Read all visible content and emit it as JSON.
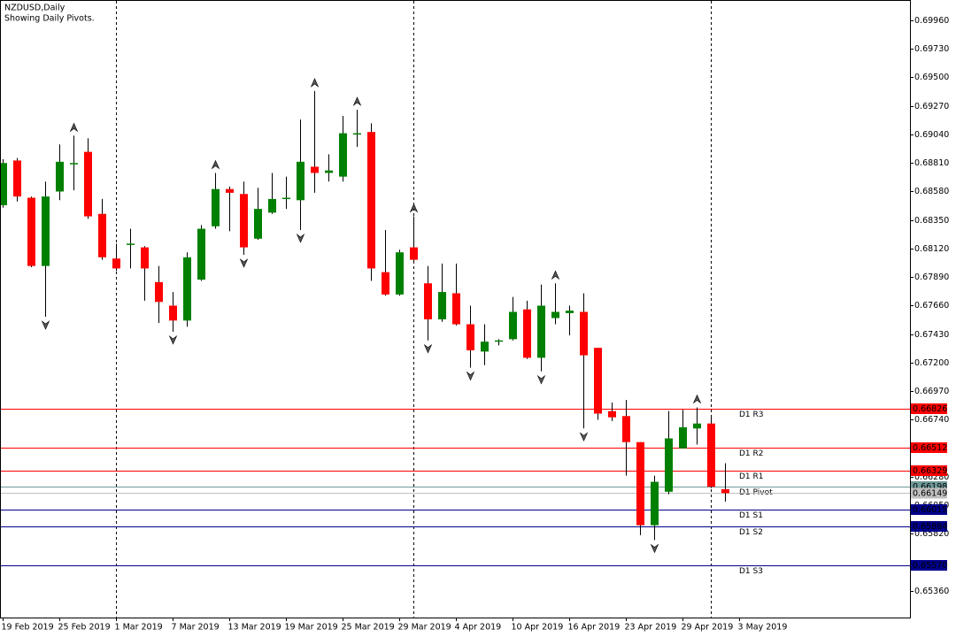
{
  "chart_data": {
    "type": "candlestick",
    "title": "NZDUSD,Daily",
    "subtitle": "Showing Daily Pivots.",
    "up_color": "#008000",
    "down_color": "#ff0000",
    "wick_color": "#000000",
    "ylim": [
      0.65146,
      0.70124
    ],
    "yticks": [
      {
        "value": 0.6996,
        "label": "0.69960"
      },
      {
        "value": 0.6973,
        "label": "0.69730"
      },
      {
        "value": 0.695,
        "label": "0.69500"
      },
      {
        "value": 0.6927,
        "label": "0.69270"
      },
      {
        "value": 0.6904,
        "label": "0.69040"
      },
      {
        "value": 0.6881,
        "label": "0.68810"
      },
      {
        "value": 0.6858,
        "label": "0.68580"
      },
      {
        "value": 0.6835,
        "label": "0.68350"
      },
      {
        "value": 0.6812,
        "label": "0.68120"
      },
      {
        "value": 0.6789,
        "label": "0.67890"
      },
      {
        "value": 0.6766,
        "label": "0.67660"
      },
      {
        "value": 0.6743,
        "label": "0.67430"
      },
      {
        "value": 0.672,
        "label": "0.67200"
      },
      {
        "value": 0.6697,
        "label": "0.66970"
      },
      {
        "value": 0.6674,
        "label": "0.66740"
      },
      {
        "value": 0.6628,
        "label": "0.66280"
      },
      {
        "value": 0.6605,
        "label": "0.66050"
      },
      {
        "value": 0.6582,
        "label": "0.65820"
      },
      {
        "value": 0.6536,
        "label": "0.65360"
      }
    ],
    "xticks": [
      {
        "value": 0,
        "label": "19 Feb 2019"
      },
      {
        "value": 4,
        "label": "25 Feb 2019"
      },
      {
        "value": 8,
        "label": "1 Mar 2019"
      },
      {
        "value": 12,
        "label": "7 Mar 2019"
      },
      {
        "value": 16,
        "label": "13 Mar 2019"
      },
      {
        "value": 20,
        "label": "19 Mar 2019"
      },
      {
        "value": 24,
        "label": "25 Mar 2019"
      },
      {
        "value": 28,
        "label": "29 Mar 2019"
      },
      {
        "value": 32,
        "label": "4 Apr 2019"
      },
      {
        "value": 36,
        "label": "10 Apr 2019"
      },
      {
        "value": 40,
        "label": "16 Apr 2019"
      },
      {
        "value": 44,
        "label": "23 Apr 2019"
      },
      {
        "value": 48,
        "label": "29 Apr 2019"
      },
      {
        "value": 52,
        "label": "3 May 2019"
      }
    ],
    "candles": [
      {
        "o": 0.6847,
        "h": 0.6884,
        "l": 0.6845,
        "c": 0.6881
      },
      {
        "o": 0.6883,
        "h": 0.6885,
        "l": 0.685,
        "c": 0.6854
      },
      {
        "o": 0.6853,
        "h": 0.6854,
        "l": 0.6797,
        "c": 0.6798
      },
      {
        "o": 0.6798,
        "h": 0.6866,
        "l": 0.6757,
        "c": 0.6854,
        "fractal": "down"
      },
      {
        "o": 0.6858,
        "h": 0.6896,
        "l": 0.6851,
        "c": 0.6882
      },
      {
        "o": 0.6881,
        "h": 0.6903,
        "l": 0.6859,
        "c": 0.6881,
        "fractal": "up"
      },
      {
        "o": 0.689,
        "h": 0.6901,
        "l": 0.6836,
        "c": 0.6838
      },
      {
        "o": 0.684,
        "h": 0.6852,
        "l": 0.6803,
        "c": 0.6805
      },
      {
        "o": 0.6804,
        "h": 0.6816,
        "l": 0.6794,
        "c": 0.6796
      },
      {
        "o": 0.6815,
        "h": 0.6828,
        "l": 0.6796,
        "c": 0.6816
      },
      {
        "o": 0.6813,
        "h": 0.6814,
        "l": 0.677,
        "c": 0.6796
      },
      {
        "o": 0.6785,
        "h": 0.6798,
        "l": 0.6752,
        "c": 0.6769
      },
      {
        "o": 0.6766,
        "h": 0.6777,
        "l": 0.6745,
        "c": 0.6754,
        "fractal": "down"
      },
      {
        "o": 0.6754,
        "h": 0.6809,
        "l": 0.6749,
        "c": 0.6805
      },
      {
        "o": 0.6787,
        "h": 0.6831,
        "l": 0.6786,
        "c": 0.6828
      },
      {
        "o": 0.683,
        "h": 0.6873,
        "l": 0.6828,
        "c": 0.686,
        "fractal": "up"
      },
      {
        "o": 0.686,
        "h": 0.6862,
        "l": 0.6826,
        "c": 0.6857
      },
      {
        "o": 0.6856,
        "h": 0.6866,
        "l": 0.6807,
        "c": 0.6813,
        "fractal": "down"
      },
      {
        "o": 0.682,
        "h": 0.6861,
        "l": 0.6819,
        "c": 0.6844
      },
      {
        "o": 0.6841,
        "h": 0.6873,
        "l": 0.684,
        "c": 0.6852
      },
      {
        "o": 0.6852,
        "h": 0.687,
        "l": 0.6844,
        "c": 0.6853
      },
      {
        "o": 0.6851,
        "h": 0.6916,
        "l": 0.6827,
        "c": 0.6882,
        "fractal": "down"
      },
      {
        "o": 0.6878,
        "h": 0.6939,
        "l": 0.6857,
        "c": 0.6873,
        "fractal": "up"
      },
      {
        "o": 0.6873,
        "h": 0.6888,
        "l": 0.6866,
        "c": 0.6875
      },
      {
        "o": 0.687,
        "h": 0.6919,
        "l": 0.6866,
        "c": 0.6905
      },
      {
        "o": 0.6904,
        "h": 0.6924,
        "l": 0.6894,
        "c": 0.6905,
        "fractal": "up"
      },
      {
        "o": 0.6906,
        "h": 0.6913,
        "l": 0.6786,
        "c": 0.6796
      },
      {
        "o": 0.6793,
        "h": 0.6827,
        "l": 0.6774,
        "c": 0.6775
      },
      {
        "o": 0.6775,
        "h": 0.6811,
        "l": 0.6774,
        "c": 0.6809
      },
      {
        "o": 0.6813,
        "h": 0.6838,
        "l": 0.6802,
        "c": 0.6803,
        "fractal": "up"
      },
      {
        "o": 0.6784,
        "h": 0.6798,
        "l": 0.6738,
        "c": 0.6755,
        "fractal": "down"
      },
      {
        "o": 0.6755,
        "h": 0.68,
        "l": 0.6753,
        "c": 0.6777
      },
      {
        "o": 0.6776,
        "h": 0.68,
        "l": 0.675,
        "c": 0.6751
      },
      {
        "o": 0.6751,
        "h": 0.6766,
        "l": 0.6716,
        "c": 0.673,
        "fractal": "down"
      },
      {
        "o": 0.6729,
        "h": 0.6751,
        "l": 0.6718,
        "c": 0.6737
      },
      {
        "o": 0.6737,
        "h": 0.6739,
        "l": 0.6734,
        "c": 0.6738
      },
      {
        "o": 0.6739,
        "h": 0.6773,
        "l": 0.6738,
        "c": 0.6761
      },
      {
        "o": 0.6763,
        "h": 0.677,
        "l": 0.6723,
        "c": 0.6724
      },
      {
        "o": 0.6724,
        "h": 0.6783,
        "l": 0.6713,
        "c": 0.6766,
        "fractal": "down"
      },
      {
        "o": 0.6756,
        "h": 0.6784,
        "l": 0.6751,
        "c": 0.6761,
        "fractal": "up"
      },
      {
        "o": 0.676,
        "h": 0.6766,
        "l": 0.6742,
        "c": 0.6762
      },
      {
        "o": 0.6761,
        "h": 0.6776,
        "l": 0.6667,
        "c": 0.6726,
        "fractal": "down"
      },
      {
        "o": 0.6732,
        "h": 0.6732,
        "l": 0.6674,
        "c": 0.6679
      },
      {
        "o": 0.6681,
        "h": 0.6688,
        "l": 0.6673,
        "c": 0.6676
      },
      {
        "o": 0.6677,
        "h": 0.669,
        "l": 0.6629,
        "c": 0.6656
      },
      {
        "o": 0.6656,
        "h": 0.6656,
        "l": 0.6581,
        "c": 0.6589
      },
      {
        "o": 0.6589,
        "h": 0.6629,
        "l": 0.6577,
        "c": 0.6624,
        "fractal": "down"
      },
      {
        "o": 0.6616,
        "h": 0.6681,
        "l": 0.6614,
        "c": 0.6659
      },
      {
        "o": 0.6651,
        "h": 0.6682,
        "l": 0.6651,
        "c": 0.6668
      },
      {
        "o": 0.6667,
        "h": 0.6684,
        "l": 0.6654,
        "c": 0.6671,
        "fractal": "up"
      },
      {
        "o": 0.6671,
        "h": 0.6678,
        "l": 0.6619,
        "c": 0.662
      },
      {
        "o": 0.6618,
        "h": 0.6639,
        "l": 0.6608,
        "c": 0.66149
      }
    ],
    "pivots": [
      {
        "name": "D1 R3",
        "value": 0.66826,
        "label": "0.66826",
        "color": "#ff0000",
        "text_color": "#ff0000"
      },
      {
        "name": "D1 R2",
        "value": 0.66512,
        "label": "0.66512",
        "color": "#ff0000",
        "text_color": "#ff0000"
      },
      {
        "name": "D1 R1",
        "value": 0.66329,
        "label": "0.66329",
        "color": "#ff0000",
        "text_color": "#ff0000"
      },
      {
        "name": "D1 Pivot",
        "value": 0.66198,
        "label": "0.66198",
        "color": "#6f9a9a",
        "text_color": "#a8c0c0"
      },
      {
        "name": "D1 S1",
        "value": 0.66015,
        "label": "0.66015",
        "color": "#00008b",
        "text_color": "#0000cd"
      },
      {
        "name": "D1 S2",
        "value": 0.65884,
        "label": "0.65884",
        "color": "#00008b",
        "text_color": "#0000cd"
      },
      {
        "name": "D1 S3",
        "value": 0.6557,
        "label": "0.65570",
        "color": "#00008b",
        "text_color": "#0000cd"
      }
    ],
    "current_price": {
      "value": 0.66149,
      "label": "0.66149",
      "color": "#c0c0c0"
    }
  }
}
